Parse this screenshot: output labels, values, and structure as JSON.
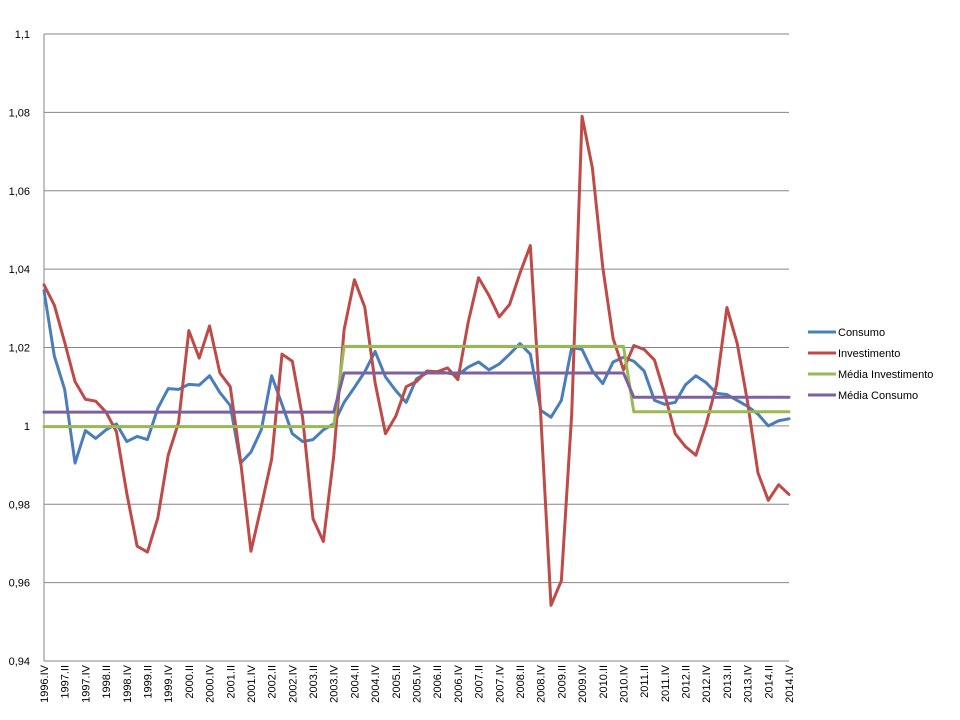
{
  "chart_data": {
    "type": "line",
    "title": "",
    "xlabel": "",
    "ylabel": "",
    "ylim": [
      0.94,
      1.1
    ],
    "yticks": [
      "0,94",
      "0,96",
      "0,98",
      "1",
      "1,02",
      "1,04",
      "1,06",
      "1,08",
      "1,1"
    ],
    "grid": true,
    "legend_position": "right",
    "x_categories": [
      "1996.IV",
      "1997.I",
      "1997.II",
      "1997.III",
      "1997.IV",
      "1998.I",
      "1998.II",
      "1998.III",
      "1998.IV",
      "1999.I",
      "1999.II",
      "1999.III",
      "1999.IV",
      "2000.I",
      "2000.II",
      "2000.III",
      "2000.IV",
      "2001.I",
      "2001.II",
      "2001.III",
      "2001.IV",
      "2002.I",
      "2002.II",
      "2002.III",
      "2002.IV",
      "2003.I",
      "2003.II",
      "2003.III",
      "2003.IV",
      "2004.I",
      "2004.II",
      "2004.III",
      "2004.IV",
      "2005.I",
      "2005.II",
      "2005.III",
      "2005.IV",
      "2006.I",
      "2006.II",
      "2006.III",
      "2006.IV",
      "2007.I",
      "2007.II",
      "2007.III",
      "2007.IV",
      "2008.I",
      "2008.II",
      "2008.III",
      "2008.IV",
      "2009.I",
      "2009.II",
      "2009.III",
      "2009.IV",
      "2010.I",
      "2010.II",
      "2010.III",
      "2010.IV",
      "2011.I",
      "2011.II",
      "2011.III",
      "2011.IV",
      "2012.I",
      "2012.II",
      "2012.III",
      "2012.IV",
      "2013.I",
      "2013.II",
      "2013.III",
      "2013.IV",
      "2014.I",
      "2014.II",
      "2014.III",
      "2014.IV"
    ],
    "x_tick_labels": [
      "1996.IV",
      "1997.II",
      "1997.IV",
      "1998.II",
      "1998.IV",
      "1999.II",
      "1999.IV",
      "2000.II",
      "2000.IV",
      "2001.II",
      "2001.IV",
      "2002.II",
      "2002.IV",
      "2003.II",
      "2003.IV",
      "2004.II",
      "2004.IV",
      "2005.II",
      "2005.IV",
      "2006.II",
      "2006.IV",
      "2007.II",
      "2007.IV",
      "2008.II",
      "2008.IV",
      "2009.II",
      "2009.IV",
      "2010.II",
      "2010.IV",
      "2011.II",
      "2011.IV",
      "2012.II",
      "2012.IV",
      "2013.II",
      "2013.IV",
      "2014.II",
      "2014.IV"
    ],
    "series": [
      {
        "name": "Consumo",
        "color": "#4A7EBB",
        "values": [
          1.0345,
          1.0178,
          1.0093,
          0.9905,
          0.9988,
          0.9968,
          0.999,
          1.0005,
          0.996,
          0.9973,
          0.9965,
          1.0045,
          1.0095,
          1.0093,
          1.0106,
          1.0104,
          1.0128,
          1.0085,
          1.0052,
          0.9905,
          0.9933,
          0.999,
          1.0128,
          1.0055,
          0.998,
          0.996,
          0.9965,
          0.999,
          1.0005,
          1.006,
          1.0098,
          1.0138,
          1.019,
          1.0125,
          1.009,
          1.006,
          1.012,
          1.0135,
          1.0138,
          1.0135,
          1.013,
          1.015,
          1.0163,
          1.0143,
          1.0158,
          1.0183,
          1.021,
          1.0183,
          1.004,
          1.0022,
          1.0065,
          1.02,
          1.0195,
          1.014,
          1.0108,
          1.0163,
          1.0175,
          1.0165,
          1.014,
          1.0065,
          1.0055,
          1.006,
          1.0105,
          1.0128,
          1.011,
          1.0083,
          1.008,
          1.0065,
          1.005,
          1.003,
          1.0,
          1.0013,
          1.0018
        ]
      },
      {
        "name": "Investimento",
        "color": "#BE4B48",
        "values": [
          1.036,
          1.0308,
          1.0213,
          1.0113,
          1.0068,
          1.0063,
          1.0035,
          0.9985,
          0.9828,
          0.9693,
          0.9678,
          0.9765,
          0.9925,
          1.0008,
          1.0243,
          1.0173,
          1.0255,
          1.0135,
          1.01,
          0.991,
          0.968,
          0.9795,
          0.9915,
          1.0183,
          1.0165,
          1.002,
          0.9763,
          0.9705,
          0.9923,
          1.0245,
          1.0373,
          1.0303,
          1.011,
          0.998,
          1.0025,
          1.01,
          1.0113,
          1.014,
          1.0138,
          1.0148,
          1.0118,
          1.0265,
          1.0378,
          1.0333,
          1.0278,
          1.031,
          1.039,
          1.046,
          1.003,
          0.9542,
          0.9605,
          1.003,
          1.079,
          1.0658,
          1.0405,
          1.0223,
          1.0143,
          1.0205,
          1.0195,
          1.0168,
          1.008,
          0.998,
          0.9947,
          0.9925,
          1.0005,
          1.0105,
          1.0302,
          1.021,
          1.006,
          0.988,
          0.981,
          0.985,
          0.9825
        ]
      },
      {
        "name": "Média Investimento",
        "color": "#98B954",
        "values": [
          0.9998,
          0.9998,
          0.9998,
          0.9998,
          0.9998,
          0.9998,
          0.9998,
          0.9998,
          0.9998,
          0.9998,
          0.9998,
          0.9998,
          0.9998,
          0.9998,
          0.9998,
          0.9998,
          0.9998,
          0.9998,
          0.9998,
          0.9998,
          0.9998,
          0.9998,
          0.9998,
          0.9998,
          0.9998,
          0.9998,
          0.9998,
          0.9998,
          0.9998,
          1.0203,
          1.0203,
          1.0203,
          1.0203,
          1.0203,
          1.0203,
          1.0203,
          1.0203,
          1.0203,
          1.0203,
          1.0203,
          1.0203,
          1.0203,
          1.0203,
          1.0203,
          1.0203,
          1.0203,
          1.0203,
          1.0203,
          1.0203,
          1.0203,
          1.0203,
          1.0203,
          1.0203,
          1.0203,
          1.0203,
          1.0203,
          1.0203,
          1.0036,
          1.0036,
          1.0036,
          1.0036,
          1.0036,
          1.0036,
          1.0036,
          1.0036,
          1.0036,
          1.0036,
          1.0036,
          1.0036,
          1.0036,
          1.0036,
          1.0036,
          1.0036
        ]
      },
      {
        "name": "Média Consumo",
        "color": "#7D60A0",
        "values": [
          1.0035,
          1.0035,
          1.0035,
          1.0035,
          1.0035,
          1.0035,
          1.0035,
          1.0035,
          1.0035,
          1.0035,
          1.0035,
          1.0035,
          1.0035,
          1.0035,
          1.0035,
          1.0035,
          1.0035,
          1.0035,
          1.0035,
          1.0035,
          1.0035,
          1.0035,
          1.0035,
          1.0035,
          1.0035,
          1.0035,
          1.0035,
          1.0035,
          1.0035,
          1.0135,
          1.0135,
          1.0135,
          1.0135,
          1.0135,
          1.0135,
          1.0135,
          1.0135,
          1.0135,
          1.0135,
          1.0135,
          1.0135,
          1.0135,
          1.0135,
          1.0135,
          1.0135,
          1.0135,
          1.0135,
          1.0135,
          1.0135,
          1.0135,
          1.0135,
          1.0135,
          1.0135,
          1.0135,
          1.0135,
          1.0135,
          1.0135,
          1.0073,
          1.0073,
          1.0073,
          1.0073,
          1.0073,
          1.0073,
          1.0073,
          1.0073,
          1.0073,
          1.0073,
          1.0073,
          1.0073,
          1.0073,
          1.0073,
          1.0073,
          1.0073
        ]
      }
    ]
  }
}
